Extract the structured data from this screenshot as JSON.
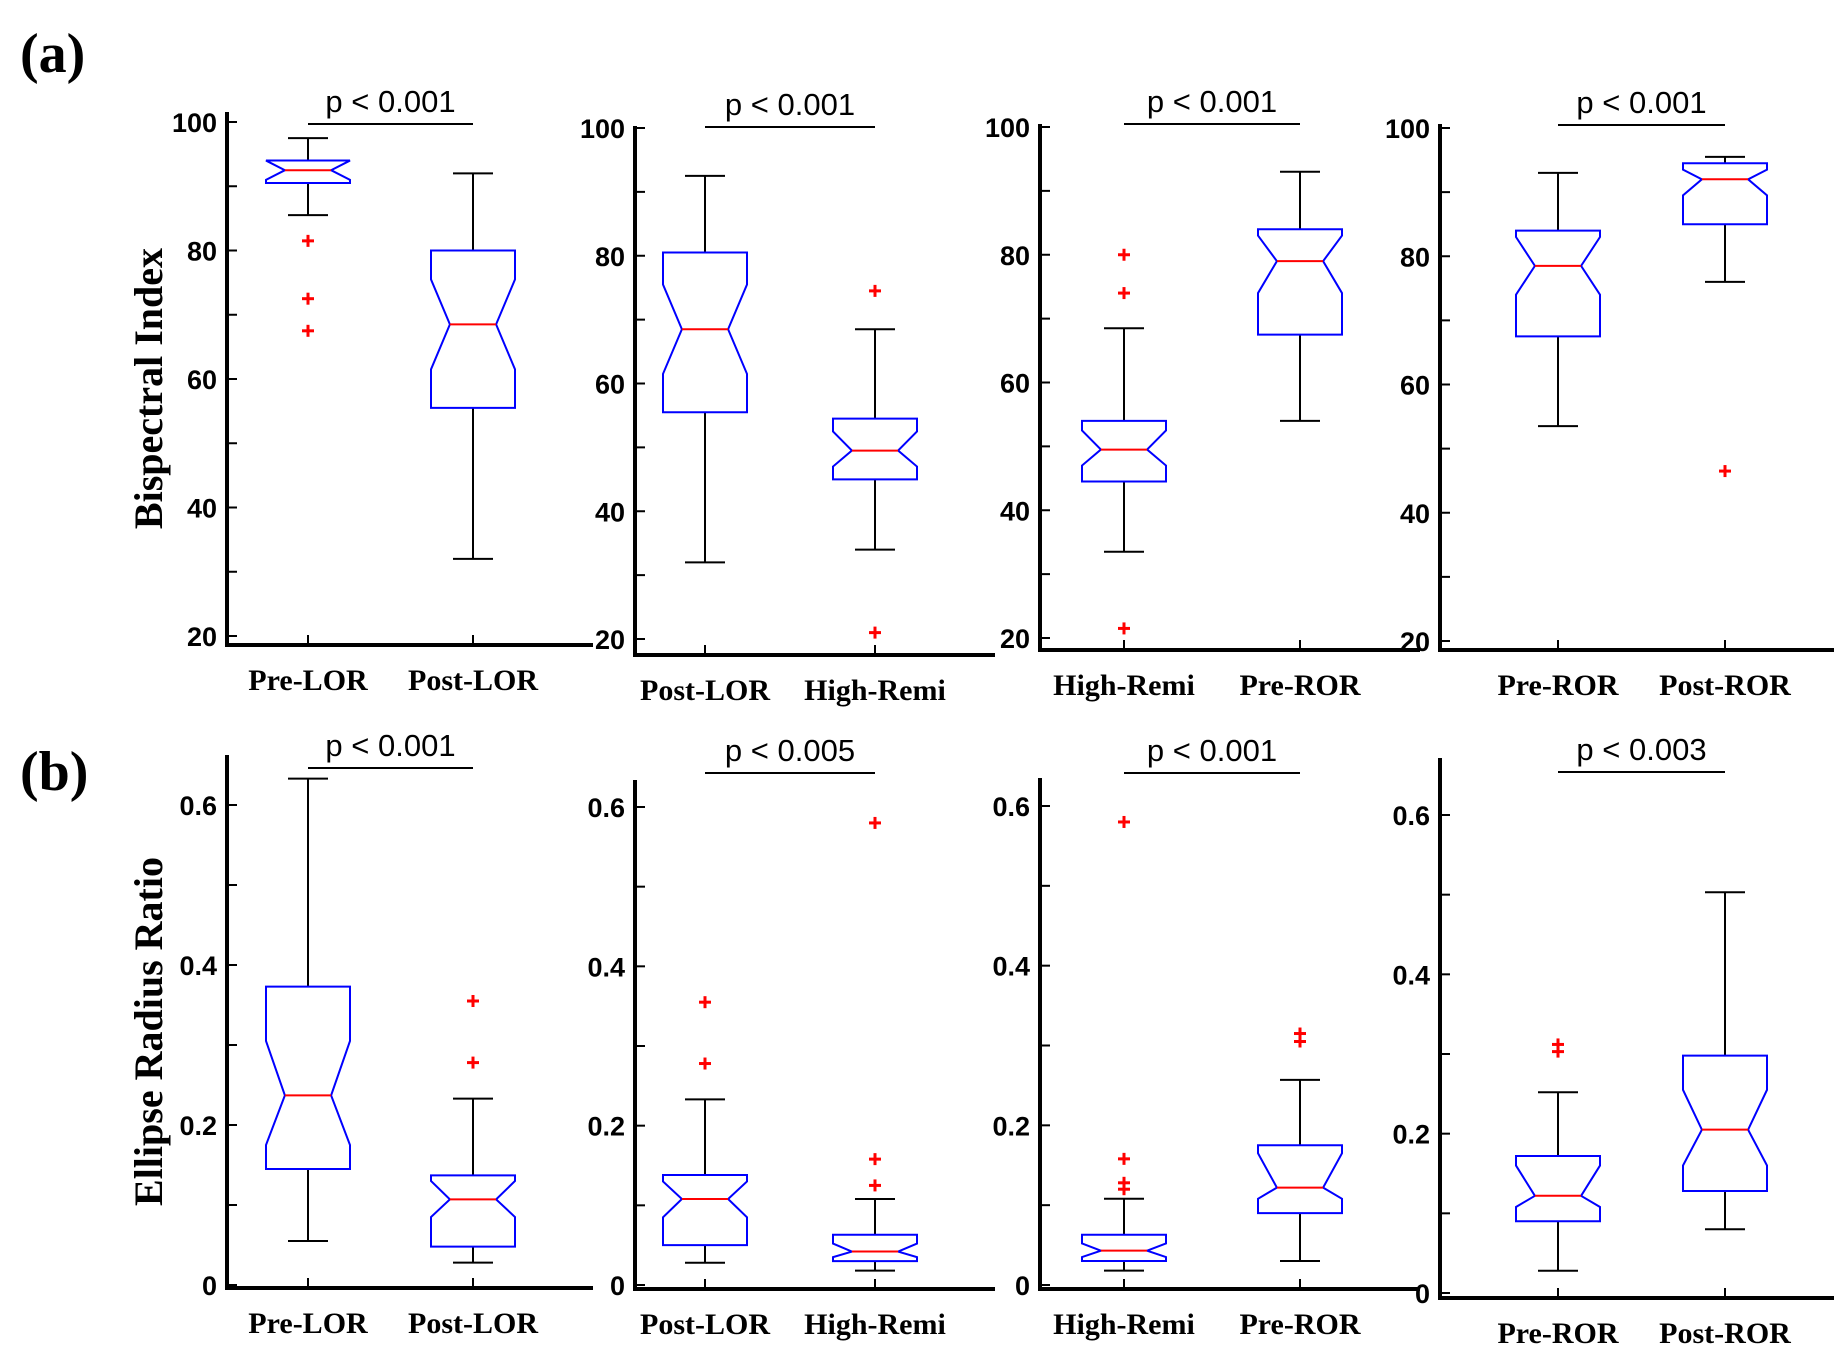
{
  "colors": {
    "box": "#0000ff",
    "median": "#ff0000",
    "outlier": "#ff0000",
    "whisker": "#000000",
    "axis": "#000000"
  },
  "chart_data": [
    {
      "type": "boxplot",
      "panel_label": "(a)",
      "ylabel": "Bispectral Index",
      "ylim": [
        20,
        100
      ],
      "yticks": [
        20,
        40,
        60,
        80,
        100
      ],
      "significance": "p < 0.001",
      "categories": [
        "Pre-LOR",
        "Post-LOR"
      ],
      "boxes": [
        {
          "q1": 90.5,
          "median": 92.5,
          "q3": 94,
          "notch_lo": 91,
          "notch_hi": 94,
          "whisker_lo": 85.5,
          "whisker_hi": 97.5,
          "outliers": [
            81.5,
            72.5,
            67.5
          ]
        },
        {
          "q1": 55.5,
          "median": 68.5,
          "q3": 80,
          "notch_lo": 61.5,
          "notch_hi": 75.5,
          "whisker_lo": 32,
          "whisker_hi": 92,
          "outliers": []
        }
      ]
    },
    {
      "type": "boxplot",
      "ylim": [
        20,
        100
      ],
      "yticks": [
        20,
        40,
        60,
        80,
        100
      ],
      "significance": "p < 0.001",
      "categories": [
        "Post-LOR",
        "High-Remi"
      ],
      "boxes": [
        {
          "q1": 55.5,
          "median": 68.5,
          "q3": 80.5,
          "notch_lo": 61.5,
          "notch_hi": 75.5,
          "whisker_lo": 32,
          "whisker_hi": 92.5,
          "outliers": []
        },
        {
          "q1": 45,
          "median": 49.5,
          "q3": 54.5,
          "notch_lo": 47,
          "notch_hi": 52.5,
          "whisker_lo": 34,
          "whisker_hi": 68.5,
          "outliers": [
            74.5,
            21
          ]
        }
      ]
    },
    {
      "type": "boxplot",
      "ylim": [
        20,
        100
      ],
      "yticks": [
        20,
        40,
        60,
        80,
        100
      ],
      "significance": "p < 0.001",
      "categories": [
        "High-Remi",
        "Pre-ROR"
      ],
      "boxes": [
        {
          "q1": 44.5,
          "median": 49.5,
          "q3": 54,
          "notch_lo": 47,
          "notch_hi": 52.5,
          "whisker_lo": 33.5,
          "whisker_hi": 68.5,
          "outliers": [
            80,
            74,
            21.5
          ]
        },
        {
          "q1": 67.5,
          "median": 79,
          "q3": 84,
          "notch_lo": 74,
          "notch_hi": 83,
          "whisker_lo": 54,
          "whisker_hi": 93,
          "outliers": []
        }
      ]
    },
    {
      "type": "boxplot",
      "ylim": [
        20,
        100
      ],
      "yticks": [
        20,
        40,
        60,
        80,
        100
      ],
      "significance": "p < 0.001",
      "categories": [
        "Pre-ROR",
        "Post-ROR"
      ],
      "boxes": [
        {
          "q1": 67.5,
          "median": 78.5,
          "q3": 84,
          "notch_lo": 74,
          "notch_hi": 83,
          "whisker_lo": 53.5,
          "whisker_hi": 93,
          "outliers": []
        },
        {
          "q1": 85,
          "median": 92,
          "q3": 94.5,
          "notch_lo": 89.5,
          "notch_hi": 93.5,
          "whisker_lo": 76,
          "whisker_hi": 95.5,
          "outliers": [
            46.5
          ]
        }
      ]
    },
    {
      "type": "boxplot",
      "panel_label": "(b)",
      "ylabel": "Ellipse Radius Ratio",
      "ylim": [
        0,
        0.66
      ],
      "yticks": [
        0,
        0.2,
        0.4,
        0.6
      ],
      "ytick_labels": [
        "0",
        "0.2",
        "0.4",
        "0.6"
      ],
      "significance": "p < 0.001",
      "categories": [
        "Pre-LOR",
        "Post-LOR"
      ],
      "boxes": [
        {
          "q1": 0.145,
          "median": 0.237,
          "q3": 0.373,
          "notch_lo": 0.175,
          "notch_hi": 0.305,
          "whisker_lo": 0.055,
          "whisker_hi": 0.633,
          "outliers": []
        },
        {
          "q1": 0.048,
          "median": 0.107,
          "q3": 0.137,
          "notch_lo": 0.085,
          "notch_hi": 0.13,
          "whisker_lo": 0.028,
          "whisker_hi": 0.233,
          "outliers": [
            0.355,
            0.278
          ]
        }
      ]
    },
    {
      "type": "boxplot",
      "ylim": [
        0,
        0.66
      ],
      "yticks": [
        0,
        0.2,
        0.4,
        0.6
      ],
      "ytick_labels": [
        "0",
        "0.2",
        "0.4",
        "0.6"
      ],
      "significance": "p < 0.005",
      "categories": [
        "Post-LOR",
        "High-Remi"
      ],
      "boxes": [
        {
          "q1": 0.05,
          "median": 0.108,
          "q3": 0.138,
          "notch_lo": 0.085,
          "notch_hi": 0.13,
          "whisker_lo": 0.028,
          "whisker_hi": 0.233,
          "outliers": [
            0.355,
            0.278
          ]
        },
        {
          "q1": 0.03,
          "median": 0.042,
          "q3": 0.063,
          "notch_lo": 0.035,
          "notch_hi": 0.052,
          "whisker_lo": 0.018,
          "whisker_hi": 0.108,
          "outliers": [
            0.58,
            0.158,
            0.125
          ]
        }
      ]
    },
    {
      "type": "boxplot",
      "ylim": [
        0,
        0.66
      ],
      "yticks": [
        0,
        0.2,
        0.4,
        0.6
      ],
      "ytick_labels": [
        "0",
        "0.2",
        "0.4",
        "0.6"
      ],
      "significance": "p < 0.001",
      "categories": [
        "High-Remi",
        "Pre-ROR"
      ],
      "boxes": [
        {
          "q1": 0.03,
          "median": 0.043,
          "q3": 0.063,
          "notch_lo": 0.035,
          "notch_hi": 0.052,
          "whisker_lo": 0.018,
          "whisker_hi": 0.108,
          "outliers": [
            0.58,
            0.158,
            0.128,
            0.12
          ]
        },
        {
          "q1": 0.09,
          "median": 0.122,
          "q3": 0.175,
          "notch_lo": 0.108,
          "notch_hi": 0.165,
          "whisker_lo": 0.03,
          "whisker_hi": 0.257,
          "outliers": [
            0.315,
            0.305
          ]
        }
      ]
    },
    {
      "type": "boxplot",
      "ylim": [
        0,
        0.66
      ],
      "yticks": [
        0,
        0.2,
        0.4,
        0.6
      ],
      "ytick_labels": [
        "0",
        "0.2",
        "0.4",
        "0.6"
      ],
      "significance": "p < 0.003",
      "categories": [
        "Pre-ROR",
        "Post-ROR"
      ],
      "boxes": [
        {
          "q1": 0.09,
          "median": 0.122,
          "q3": 0.172,
          "notch_lo": 0.108,
          "notch_hi": 0.16,
          "whisker_lo": 0.028,
          "whisker_hi": 0.252,
          "outliers": [
            0.312,
            0.303
          ]
        },
        {
          "q1": 0.128,
          "median": 0.205,
          "q3": 0.298,
          "notch_lo": 0.16,
          "notch_hi": 0.255,
          "whisker_lo": 0.08,
          "whisker_hi": 0.503,
          "outliers": []
        }
      ]
    }
  ]
}
